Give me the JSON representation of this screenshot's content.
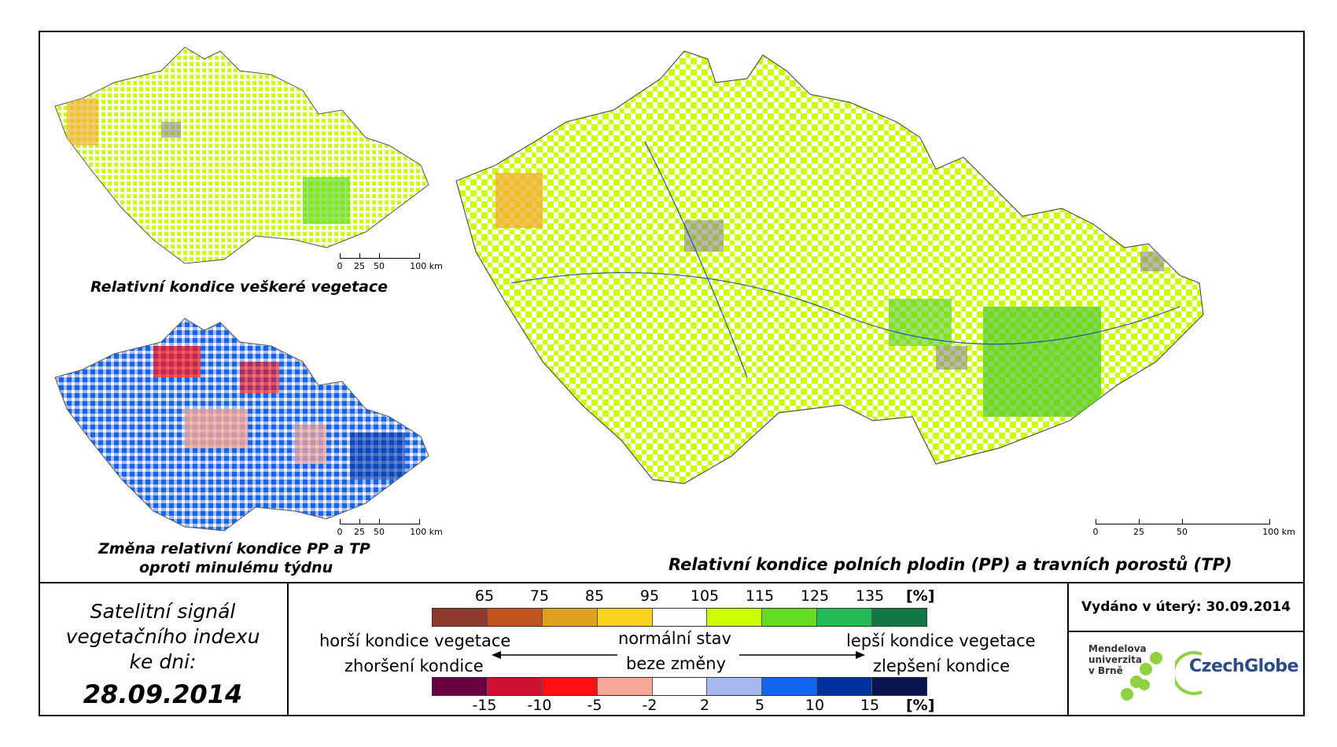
{
  "maps": {
    "main_caption": "Relativní kondice polních plodin (PP) a travních porostů (TP)",
    "top_left_caption": "Relativní kondice veškeré vegetace",
    "bottom_left_caption_line1": "Změna relativní kondice PP a TP",
    "bottom_left_caption_line2": "oproti minulému týdnu"
  },
  "scalebar": {
    "labels": [
      "0",
      "25",
      "50",
      "100 km"
    ]
  },
  "legend": {
    "condition": {
      "ticks": [
        "65",
        "75",
        "85",
        "95",
        "105",
        "115",
        "125",
        "135"
      ],
      "unit": "[%]",
      "colors": [
        "#8b3a2b",
        "#c0531f",
        "#e0a020",
        "#ffd21f",
        "#ffffff",
        "#ccff00",
        "#66dd22",
        "#22bb55",
        "#117744"
      ]
    },
    "change": {
      "ticks": [
        "-15",
        "-10",
        "-5",
        "-2",
        "2",
        "5",
        "10",
        "15"
      ],
      "unit": "[%]",
      "colors": [
        "#6b0040",
        "#cc1133",
        "#ff1111",
        "#f8a898",
        "#ffffff",
        "#a8b8f0",
        "#1166ee",
        "#0033a0",
        "#0a1450"
      ]
    },
    "worse_condition": "horší kondice vegetace",
    "worsening": "zhoršení kondice",
    "normal_state": "normální stav",
    "no_change": "beze změny",
    "better_condition": "lepší kondice vegetace",
    "improvement": "zlepšení kondice"
  },
  "info": {
    "satellite_line1": "Satelitní signál",
    "satellite_line2": "vegetačního indexu",
    "satellite_line3": "ke dni:",
    "date": "28.09.2014",
    "issued": "Vydáno v úterý: 30.09.2014"
  },
  "logos": {
    "mendel_line1": "Mendelova",
    "mendel_line2": "univerzita",
    "mendel_line3": "v Brně",
    "czechglobe": "CzechGlobe"
  }
}
